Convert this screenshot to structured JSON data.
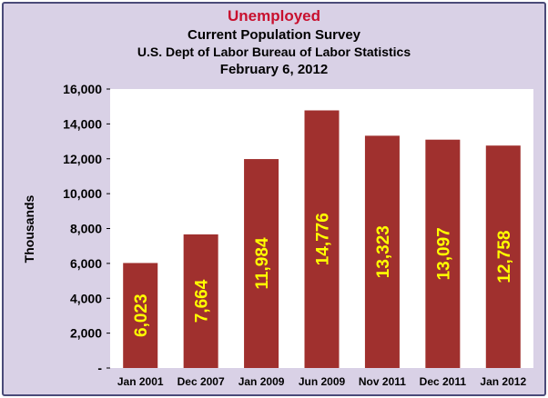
{
  "colors": {
    "background": "#d9d1e6",
    "plot_area": "#ffffff",
    "bar": "#a0302e",
    "data_label": "#ffff00",
    "title": "#c8102e",
    "frame_border": "#4a4a78"
  },
  "chart_data": {
    "type": "bar",
    "title": "Unemployed",
    "subtitle": [
      "Current Population Survey",
      "U.S. Dept of Labor Bureau of Labor Statistics",
      "February 6, 2012"
    ],
    "xlabel": "",
    "ylabel": "Thousands",
    "categories": [
      "Jan 2001",
      "Dec 2007",
      "Jan 2009",
      "Jun 2009",
      "Nov 2011",
      "Dec 2011",
      "Jan 2012"
    ],
    "values": [
      6023,
      7664,
      11984,
      14776,
      13323,
      13097,
      12758
    ],
    "data_labels": [
      "6,023",
      "7,664",
      "11,984",
      "14,776",
      "13,323",
      "13,097",
      "12,758"
    ],
    "ylim": [
      0,
      16000
    ],
    "yticks": [
      0,
      2000,
      4000,
      6000,
      8000,
      10000,
      12000,
      14000,
      16000
    ],
    "ytick_labels": [
      "-",
      "2,000",
      "4,000",
      "6,000",
      "8,000",
      "10,000",
      "12,000",
      "14,000",
      "16,000"
    ],
    "grid": false,
    "legend": "none"
  }
}
